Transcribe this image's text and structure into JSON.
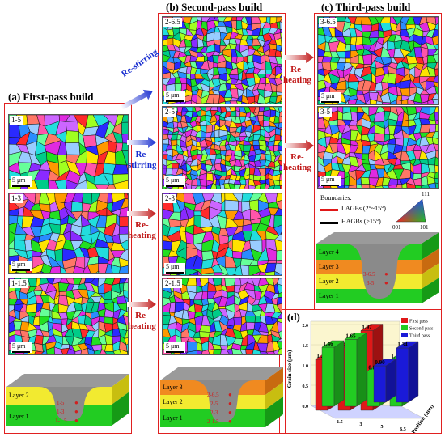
{
  "panels": {
    "a": {
      "title": "(a) First-pass build"
    },
    "b": {
      "title": "(b) Second-pass build"
    },
    "c": {
      "title": "(c) Third-pass build"
    },
    "d": {
      "title": "(d)"
    }
  },
  "maps": {
    "m15": {
      "tag": "1-5"
    },
    "m13": {
      "tag": "1-3"
    },
    "m1115": {
      "tag": "1-1.5"
    },
    "m265": {
      "tag": "2-6.5"
    },
    "m25": {
      "tag": "2-5"
    },
    "m23": {
      "tag": "2-3"
    },
    "m215": {
      "tag": "2-1.5"
    },
    "m365": {
      "tag": "3-6.5"
    },
    "m35": {
      "tag": "3-5"
    }
  },
  "scale_bar": "5 μm",
  "arrows": {
    "restir_top": "Re-stirring",
    "restir_mid": "Re-\nstirring",
    "reheat_a1": "Re-\nheating",
    "reheat_a2": "Re-\nheating",
    "reheat_b1": "Re-\nheating",
    "reheat_b2": "Re-\nheating"
  },
  "boundaries": {
    "title": "Boundaries:",
    "lagb": "LAGBs (2°~15°)",
    "hagb": "HAGBs (>15°)",
    "ipf_111": "111",
    "ipf_001": "001",
    "ipf_101": "101"
  },
  "diagrams": {
    "a": {
      "layers": [
        "Layer 2",
        "Layer 1"
      ],
      "points": [
        "1-5",
        "1-3",
        "1-1.5"
      ]
    },
    "b": {
      "layers": [
        "Layer 3",
        "Layer 2",
        "Layer 1"
      ],
      "points": [
        "2-6.5",
        "2-5",
        "2-3",
        "2-1.5"
      ]
    },
    "c": {
      "layers": [
        "Layer 4",
        "Layer 3",
        "Layer 2",
        "Layer 1"
      ],
      "points": [
        "3-6.5",
        "3-5"
      ]
    }
  },
  "chart_data": {
    "type": "bar",
    "ylabel": "Grain size (μm)",
    "xlabel": "Position (mm)",
    "categories": [
      "1.5",
      "3",
      "5",
      "6.5"
    ],
    "yticks": [
      "0.0",
      "0.5",
      "1.0",
      "1.5",
      "2.0"
    ],
    "ylim": [
      0,
      2.0
    ],
    "series": [
      {
        "name": "First pass",
        "color": "#e01818",
        "values": [
          1.26,
          1.56,
          1.97,
          null
        ]
      },
      {
        "name": "Second pass",
        "color": "#22cc22",
        "values": [
          1.46,
          1.65,
          0.87,
          1.15
        ]
      },
      {
        "name": "Third pass",
        "color": "#1a1ad8",
        "values": [
          null,
          null,
          0.9,
          1.34
        ]
      }
    ],
    "value_labels": [
      "1.26",
      "1.56",
      "1.97",
      "1.46",
      "1.65",
      "0.87",
      "1.15",
      "0.90",
      "1.34"
    ]
  },
  "colors": {
    "frame": "#e02020",
    "reheat": "#c01818",
    "restir": "#1a2fd0"
  }
}
